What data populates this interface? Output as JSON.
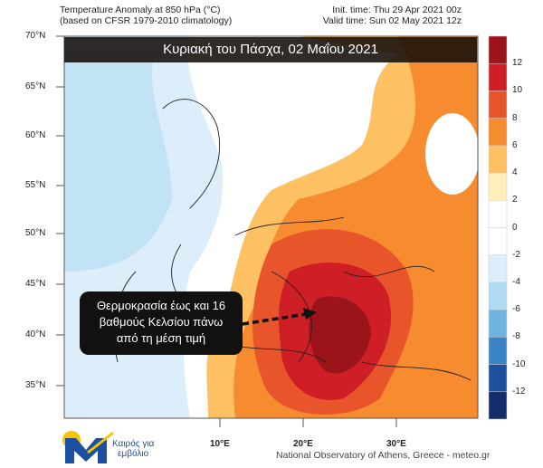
{
  "header": {
    "title_line1": "Temperature Anomaly at 850 hPa (°C)",
    "title_line2": "(based on CFSR 1979-2010 climatology)",
    "init_time": "Init. time: Thu 29 Apr 2021 00z",
    "valid_time": "Valid time: Sun 02 May 2021 12z"
  },
  "banner": "Κυριακή του Πάσχα, 02 Μαΐου 2021",
  "callout": {
    "line1": "Θερμοκρασία έως και 16",
    "line2": "βαθμούς Κελσίου πάνω",
    "line3": "από τη μέση τιμή"
  },
  "latitudes": [
    "70°N",
    "65°N",
    "60°N",
    "55°N",
    "50°N",
    "45°N",
    "40°N",
    "35°N"
  ],
  "longitudes": [
    "10°E",
    "20°E",
    "30°E"
  ],
  "colorbar": {
    "labels": [
      "12",
      "10",
      "8",
      "6",
      "4",
      "2",
      "0",
      "-2",
      "-4",
      "-6",
      "-8",
      "-10",
      "-12"
    ],
    "colors": [
      "#9b1419",
      "#cf1f26",
      "#e9552b",
      "#f68b2f",
      "#fdc163",
      "#feefbd",
      "#ffffff",
      "#ffffff",
      "#dbeef9",
      "#b0daf2",
      "#6fb4e0",
      "#3a84c6",
      "#1c4f9c",
      "#142d6a"
    ]
  },
  "logo": {
    "text_line1": "Καιρός για",
    "text_line2": "εμβόλιο"
  },
  "credit": "National Observatory of Athens, Greece - meteo.gr"
}
